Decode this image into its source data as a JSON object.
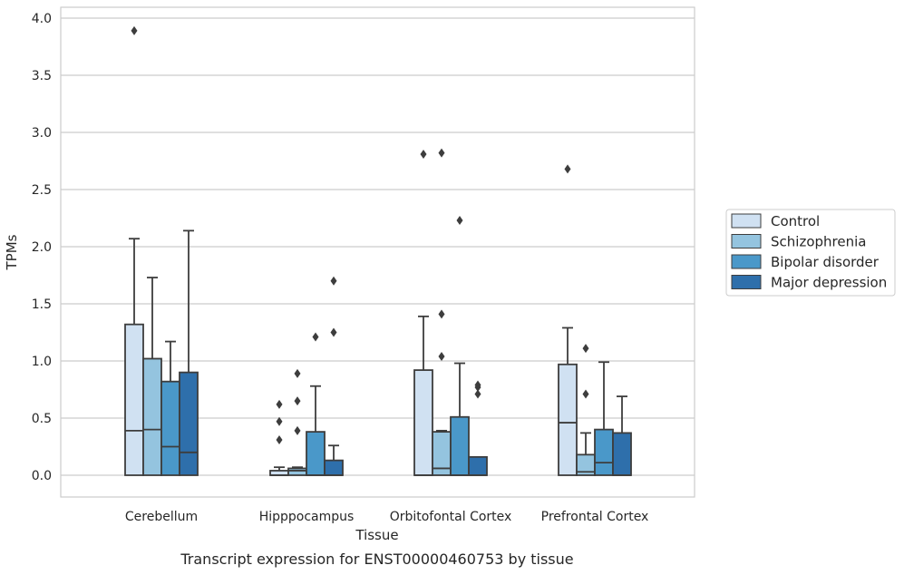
{
  "chart_data": {
    "type": "box",
    "xlabel": "Tissue",
    "ylabel": "TPMs",
    "caption": "Transcript expression for ENST00000460753 by tissue",
    "ylim": [
      -0.19,
      4.1
    ],
    "yticks": [
      "0.0",
      "0.5",
      "1.0",
      "1.5",
      "2.0",
      "2.5",
      "3.0",
      "3.5",
      "4.0"
    ],
    "grid": true,
    "legend_position": "right",
    "categories": [
      "Cerebellum",
      "Hipppocampus",
      "Orbitofontal Cortex",
      "Prefrontal Cortex"
    ],
    "series": [
      {
        "name": "Control",
        "color": "#d0e1f2",
        "boxes": [
          {
            "min": 0,
            "q1": 0,
            "median": 0.39,
            "q3": 1.32,
            "max": 2.07,
            "outliers": [
              3.89
            ]
          },
          {
            "min": 0,
            "q1": 0,
            "median": 0.0,
            "q3": 0.04,
            "max": 0.07,
            "outliers": [
              0.31,
              0.47,
              0.62
            ]
          },
          {
            "min": 0,
            "q1": 0,
            "median": 0.0,
            "q3": 0.92,
            "max": 1.39,
            "outliers": [
              2.81
            ]
          },
          {
            "min": 0,
            "q1": 0,
            "median": 0.46,
            "q3": 0.97,
            "max": 1.29,
            "outliers": [
              2.68
            ]
          }
        ]
      },
      {
        "name": "Schizophrenia",
        "color": "#94c4df",
        "boxes": [
          {
            "min": 0,
            "q1": 0,
            "median": 0.4,
            "q3": 1.02,
            "max": 1.73,
            "outliers": []
          },
          {
            "min": 0,
            "q1": 0,
            "median": 0.04,
            "q3": 0.06,
            "max": 0.07,
            "outliers": [
              0.39,
              0.65,
              0.89
            ]
          },
          {
            "min": 0,
            "q1": 0,
            "median": 0.06,
            "q3": 0.38,
            "max": 0.39,
            "outliers": [
              1.04,
              1.41,
              2.82
            ]
          },
          {
            "min": 0,
            "q1": 0,
            "median": 0.03,
            "q3": 0.18,
            "max": 0.37,
            "outliers": [
              0.71,
              1.11
            ]
          }
        ]
      },
      {
        "name": "Bipolar disorder",
        "color": "#4a98c9",
        "boxes": [
          {
            "min": 0,
            "q1": 0,
            "median": 0.25,
            "q3": 0.82,
            "max": 1.17,
            "outliers": []
          },
          {
            "min": 0,
            "q1": 0,
            "median": 0.0,
            "q3": 0.38,
            "max": 0.78,
            "outliers": [
              1.21
            ]
          },
          {
            "min": 0,
            "q1": 0,
            "median": 0.0,
            "q3": 0.51,
            "max": 0.98,
            "outliers": [
              2.23
            ]
          },
          {
            "min": 0,
            "q1": 0,
            "median": 0.11,
            "q3": 0.4,
            "max": 0.99,
            "outliers": []
          }
        ]
      },
      {
        "name": "Major depression",
        "color": "#2e6fab",
        "boxes": [
          {
            "min": 0,
            "q1": 0,
            "median": 0.2,
            "q3": 0.9,
            "max": 2.14,
            "outliers": []
          },
          {
            "min": 0,
            "q1": 0,
            "median": 0.0,
            "q3": 0.13,
            "max": 0.26,
            "outliers": [
              1.25,
              1.7
            ]
          },
          {
            "min": 0,
            "q1": 0,
            "median": 0.0,
            "q3": 0.16,
            "max": 0.16,
            "outliers": [
              0.71,
              0.77,
              0.79
            ]
          },
          {
            "min": 0,
            "q1": 0,
            "median": 0.0,
            "q3": 0.37,
            "max": 0.69,
            "outliers": []
          }
        ]
      }
    ]
  }
}
